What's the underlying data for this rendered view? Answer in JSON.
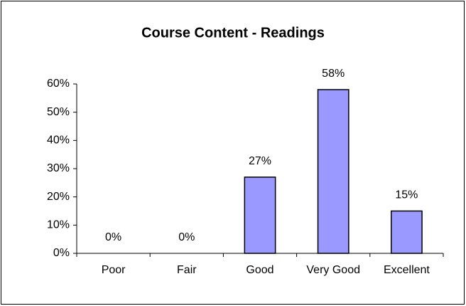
{
  "chart_data": {
    "type": "bar",
    "title": "Course Content - Readings",
    "categories": [
      "Poor",
      "Fair",
      "Good",
      "Very Good",
      "Excellent"
    ],
    "values": [
      0,
      0,
      27,
      58,
      15
    ],
    "value_labels": [
      "0%",
      "0%",
      "27%",
      "58%",
      "15%"
    ],
    "color": "#9999ff",
    "ylim": [
      0,
      60
    ],
    "yticks": [
      {
        "value": 0,
        "label": "0%"
      },
      {
        "value": 10,
        "label": "10%"
      },
      {
        "value": 20,
        "label": "20%"
      },
      {
        "value": 30,
        "label": "30%"
      },
      {
        "value": 40,
        "label": "40%"
      },
      {
        "value": 50,
        "label": "50%"
      },
      {
        "value": 60,
        "label": "60%"
      }
    ],
    "grid": false
  }
}
